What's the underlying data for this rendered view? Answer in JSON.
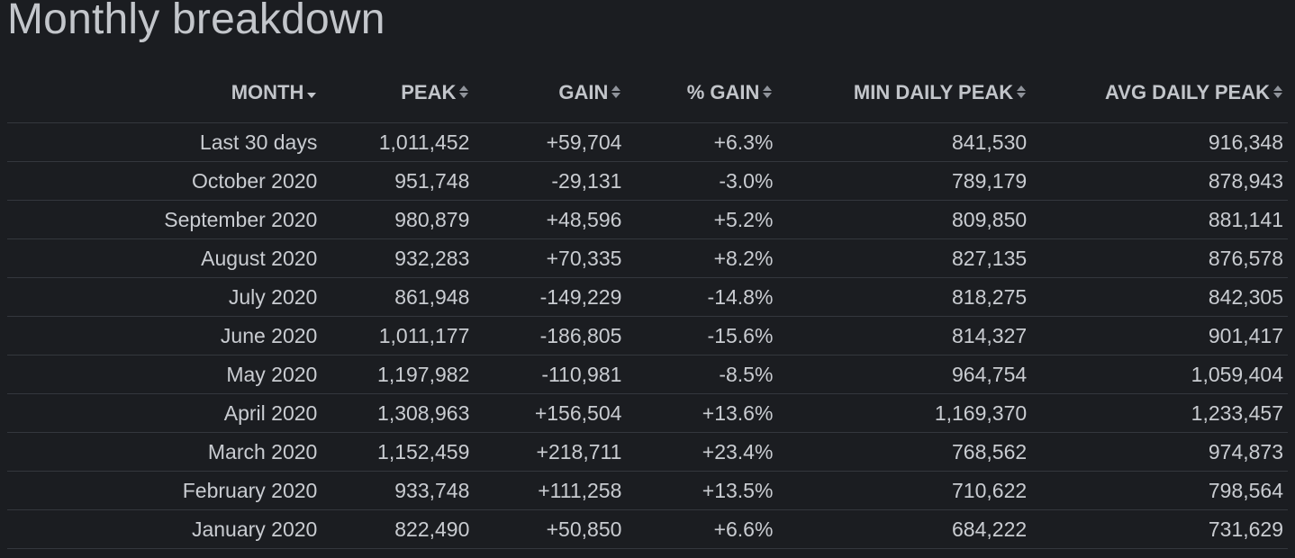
{
  "title": "Monthly breakdown",
  "colors": {
    "background": "#1b1d21",
    "text": "#c9ccd1",
    "positive": "#86c05f",
    "negative": "#e0484a",
    "divider": "#34373d"
  },
  "columns": [
    {
      "key": "month",
      "label": "MONTH",
      "sort": "desc-active"
    },
    {
      "key": "peak",
      "label": "PEAK",
      "sort": "both"
    },
    {
      "key": "gain",
      "label": "GAIN",
      "sort": "both"
    },
    {
      "key": "pct_gain",
      "label": "% GAIN",
      "sort": "both"
    },
    {
      "key": "min_daily_peak",
      "label": "MIN DAILY PEAK",
      "sort": "both"
    },
    {
      "key": "avg_daily_peak",
      "label": "AVG DAILY PEAK",
      "sort": "both"
    }
  ],
  "rows": [
    {
      "month": "Last 30 days",
      "peak": "1,011,452",
      "gain": "+59,704",
      "pct_gain": "+6.3%",
      "min_daily_peak": "841,530",
      "avg_daily_peak": "916,348",
      "trend": "pos"
    },
    {
      "month": "October 2020",
      "peak": "951,748",
      "gain": "-29,131",
      "pct_gain": "-3.0%",
      "min_daily_peak": "789,179",
      "avg_daily_peak": "878,943",
      "trend": "neg"
    },
    {
      "month": "September 2020",
      "peak": "980,879",
      "gain": "+48,596",
      "pct_gain": "+5.2%",
      "min_daily_peak": "809,850",
      "avg_daily_peak": "881,141",
      "trend": "pos"
    },
    {
      "month": "August 2020",
      "peak": "932,283",
      "gain": "+70,335",
      "pct_gain": "+8.2%",
      "min_daily_peak": "827,135",
      "avg_daily_peak": "876,578",
      "trend": "pos"
    },
    {
      "month": "July 2020",
      "peak": "861,948",
      "gain": "-149,229",
      "pct_gain": "-14.8%",
      "min_daily_peak": "818,275",
      "avg_daily_peak": "842,305",
      "trend": "neg"
    },
    {
      "month": "June 2020",
      "peak": "1,011,177",
      "gain": "-186,805",
      "pct_gain": "-15.6%",
      "min_daily_peak": "814,327",
      "avg_daily_peak": "901,417",
      "trend": "neg"
    },
    {
      "month": "May 2020",
      "peak": "1,197,982",
      "gain": "-110,981",
      "pct_gain": "-8.5%",
      "min_daily_peak": "964,754",
      "avg_daily_peak": "1,059,404",
      "trend": "neg"
    },
    {
      "month": "April 2020",
      "peak": "1,308,963",
      "gain": "+156,504",
      "pct_gain": "+13.6%",
      "min_daily_peak": "1,169,370",
      "avg_daily_peak": "1,233,457",
      "trend": "pos"
    },
    {
      "month": "March 2020",
      "peak": "1,152,459",
      "gain": "+218,711",
      "pct_gain": "+23.4%",
      "min_daily_peak": "768,562",
      "avg_daily_peak": "974,873",
      "trend": "pos"
    },
    {
      "month": "February 2020",
      "peak": "933,748",
      "gain": "+111,258",
      "pct_gain": "+13.5%",
      "min_daily_peak": "710,622",
      "avg_daily_peak": "798,564",
      "trend": "pos"
    },
    {
      "month": "January 2020",
      "peak": "822,490",
      "gain": "+50,850",
      "pct_gain": "+6.6%",
      "min_daily_peak": "684,222",
      "avg_daily_peak": "731,629",
      "trend": "pos"
    }
  ]
}
